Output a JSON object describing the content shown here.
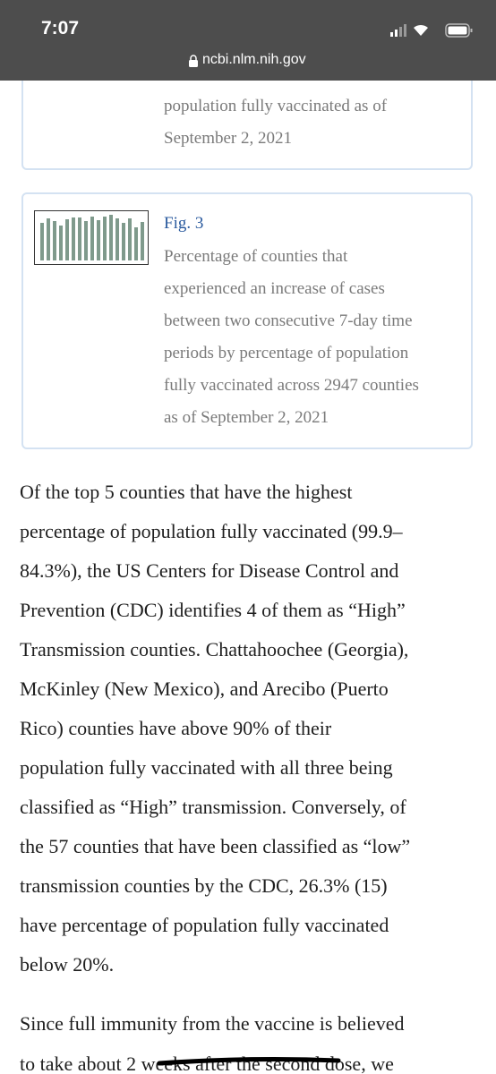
{
  "status": {
    "time": "7:07",
    "url": "ncbi.nlm.nih.gov"
  },
  "cards": [
    {
      "caption_lines": [
        "population fully vaccinated as of",
        "September 2, 2021"
      ]
    },
    {
      "label": "Fig. 3",
      "caption_lines": [
        "Percentage of counties that",
        "experienced an increase of cases",
        "between two consecutive 7-day time",
        "periods by percentage of population",
        "fully vaccinated across 2947 counties",
        "as of September 2, 2021"
      ]
    }
  ],
  "paragraphs": [
    {
      "lines": [
        "Of the top 5 counties that have the highest",
        "percentage of population fully vaccinated (99.9–",
        "84.3%), the US Centers for Disease Control and",
        "Prevention (CDC) identifies 4 of them as “High”",
        "Transmission counties. Chattahoochee (Georgia),",
        "McKinley (New Mexico), and Arecibo (Puerto",
        "Rico) counties have above 90% of their",
        "population fully vaccinated with all three being",
        "classified as “High” transmission. Conversely, of",
        "the 57 counties that have been classified as “low”",
        "transmission counties by the CDC, 26.3% (15)",
        "have percentage of population fully vaccinated",
        "below 20%."
      ]
    },
    {
      "lines": [
        "Since full immunity from the vaccine is believed",
        "to take about 2 weeks after the second dose, we"
      ]
    }
  ]
}
